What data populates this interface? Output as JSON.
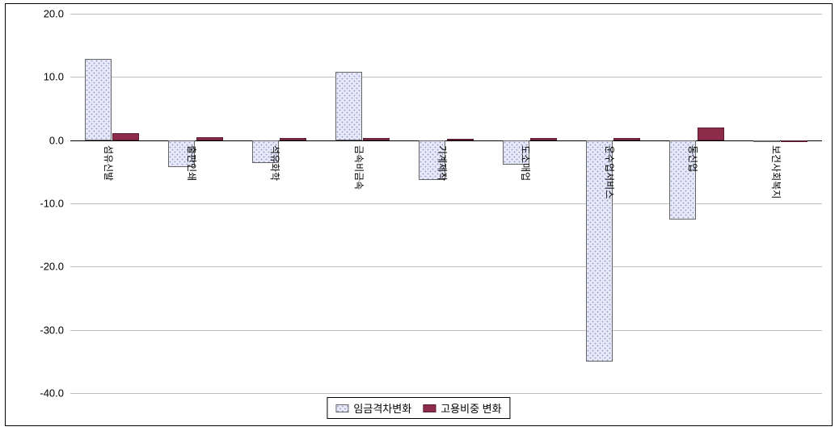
{
  "chart": {
    "type": "bar",
    "ylim": [
      -40,
      20
    ],
    "ytick_step": 10,
    "ytick_decimals": 1,
    "grid_color": "#bfbfbf",
    "zero_line_color": "#000000",
    "background_color": "#ffffff",
    "tick_fontsize": 13,
    "category_fontsize": 12,
    "bar_group_gap": 0.35,
    "bar_gap_inner": 0.02,
    "series": [
      {
        "key": "wage_gap",
        "label": "임금격차변화",
        "fill": "#e8e8f8",
        "pattern": "dots",
        "dot_color": "#8898c8",
        "border": "#666666"
      },
      {
        "key": "emp_share",
        "label": "고용비중 변화",
        "fill": "#8d2b4a",
        "pattern": "solid",
        "border": "#5a1c30"
      }
    ],
    "categories": [
      {
        "label": "섬유신발",
        "wage_gap": 12.8,
        "emp_share": 1.1
      },
      {
        "label": "출판인쇄",
        "wage_gap": -4.2,
        "emp_share": 0.5
      },
      {
        "label": "석유화학",
        "wage_gap": -3.6,
        "emp_share": 0.4
      },
      {
        "label": "금속비금속",
        "wage_gap": 10.8,
        "emp_share": 0.3
      },
      {
        "label": "기계제작",
        "wage_gap": -6.3,
        "emp_share": 0.2
      },
      {
        "label": "도소매업",
        "wage_gap": -3.9,
        "emp_share": 0.3
      },
      {
        "label": "운수업서비스",
        "wage_gap": -35.0,
        "emp_share": 0.3
      },
      {
        "label": "통신업",
        "wage_gap": -12.5,
        "emp_share": 2.0
      },
      {
        "label": "보건사회복지",
        "wage_gap": -0.3,
        "emp_share": -0.25
      }
    ],
    "legend_border": "#000000"
  }
}
